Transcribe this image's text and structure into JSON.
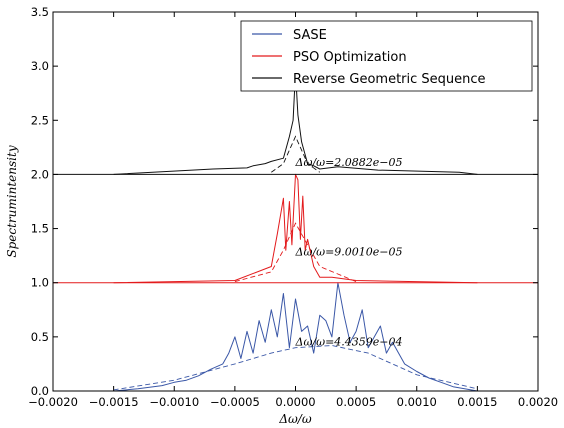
{
  "chart_data": {
    "type": "line",
    "xlabel": "Δω/ω",
    "ylabel": "Spectrumintensity",
    "xlim": [
      -0.002,
      0.002
    ],
    "ylim": [
      0.0,
      3.5
    ],
    "x_ticks": [
      -0.002,
      -0.0015,
      -0.001,
      -0.0005,
      0.0,
      0.0005,
      0.001,
      0.0015,
      0.002
    ],
    "x_tick_labels": [
      "−0.0020",
      "−0.0015",
      "−0.0010",
      "−0.0005",
      "0.0000",
      "0.0005",
      "0.0010",
      "0.0015",
      "0.0020"
    ],
    "y_ticks": [
      0.0,
      0.5,
      1.0,
      1.5,
      2.0,
      2.5,
      3.0,
      3.5
    ],
    "y_tick_labels": [
      "0.0",
      "0.5",
      "1.0",
      "1.5",
      "2.0",
      "2.5",
      "3.0",
      "3.5"
    ],
    "legend_position": "top-right",
    "series": [
      {
        "name": "SASE",
        "color": "#3a57a7",
        "baseline": 0.0,
        "x": [
          -0.0015,
          -0.0013,
          -0.0011,
          -0.001,
          -0.0009,
          -0.0008,
          -0.0007,
          -0.0006,
          -0.00055,
          -0.0005,
          -0.00045,
          -0.0004,
          -0.00035,
          -0.0003,
          -0.00025,
          -0.0002,
          -0.00015,
          -0.0001,
          -5e-05,
          0.0,
          5e-05,
          0.0001,
          0.00015,
          0.0002,
          0.00025,
          0.0003,
          0.00035,
          0.0004,
          0.00045,
          0.0005,
          0.00055,
          0.0006,
          0.00065,
          0.0007,
          0.00075,
          0.0008,
          0.0009,
          0.001,
          0.0011,
          0.0012,
          0.0013,
          0.0015
        ],
        "y": [
          0.0,
          0.02,
          0.05,
          0.08,
          0.1,
          0.14,
          0.2,
          0.25,
          0.35,
          0.5,
          0.3,
          0.55,
          0.35,
          0.65,
          0.45,
          0.75,
          0.5,
          0.9,
          0.4,
          0.85,
          0.55,
          0.6,
          0.35,
          0.7,
          0.65,
          0.5,
          1.0,
          0.7,
          0.45,
          0.55,
          0.75,
          0.4,
          0.5,
          0.6,
          0.35,
          0.45,
          0.25,
          0.18,
          0.12,
          0.08,
          0.04,
          0.0
        ],
        "envelope": {
          "x": [
            -0.0015,
            -0.001,
            -0.0005,
            -0.0002,
            0.0,
            0.0003,
            0.0006,
            0.001,
            0.0015
          ],
          "y": [
            0.01,
            0.1,
            0.25,
            0.35,
            0.4,
            0.42,
            0.35,
            0.15,
            0.02
          ]
        }
      },
      {
        "name": "PSO Optimization",
        "color": "#e31a1c",
        "baseline": 1.0,
        "x": [
          -0.0015,
          -0.0005,
          -0.0002,
          -0.00015,
          -0.0001,
          -8e-05,
          -5e-05,
          -3e-05,
          0.0,
          2e-05,
          4e-05,
          6e-05,
          8e-05,
          0.0001,
          0.00015,
          0.0002,
          0.0003,
          0.0005,
          0.0015
        ],
        "y": [
          1.0,
          1.02,
          1.15,
          1.45,
          1.78,
          1.3,
          1.75,
          1.35,
          2.0,
          1.95,
          1.4,
          1.8,
          1.3,
          1.4,
          1.15,
          1.05,
          1.05,
          1.02,
          1.0
        ],
        "envelope": {
          "x": [
            -0.0005,
            -0.0002,
            -0.0001,
            0.0,
            0.0001,
            0.0002,
            0.0005
          ],
          "y": [
            1.01,
            1.1,
            1.3,
            1.55,
            1.35,
            1.15,
            1.01
          ]
        }
      },
      {
        "name": "Reverse Geometric Sequence",
        "color": "#111111",
        "baseline": 2.0,
        "x": [
          -0.0015,
          -0.00068,
          -0.0004,
          -0.00035,
          -0.00025,
          -0.0002,
          -0.0001,
          -5e-05,
          -2e-05,
          0.0,
          2e-05,
          5e-05,
          0.0001,
          0.00015,
          0.0002,
          0.00035,
          0.00068,
          0.00135,
          0.0015
        ],
        "y": [
          2.0,
          2.05,
          2.06,
          2.08,
          2.1,
          2.12,
          2.15,
          2.35,
          2.5,
          2.95,
          2.55,
          2.3,
          2.1,
          2.08,
          2.05,
          2.07,
          2.04,
          2.02,
          2.0
        ],
        "envelope": {
          "x": [
            -0.0002,
            -0.0001,
            0.0,
            0.0001,
            0.0002
          ],
          "y": [
            2.02,
            2.1,
            2.35,
            2.1,
            2.02
          ]
        }
      }
    ],
    "annotations": [
      {
        "text": "Δω/ω=2.0882e−05",
        "x": 0.0,
        "y": 2.08
      },
      {
        "text": "Δω/ω=9.0010e−05",
        "x": 0.0,
        "y": 1.25
      },
      {
        "text": "Δω/ω=4.4359e−04",
        "x": 0.0,
        "y": 0.42
      }
    ]
  }
}
